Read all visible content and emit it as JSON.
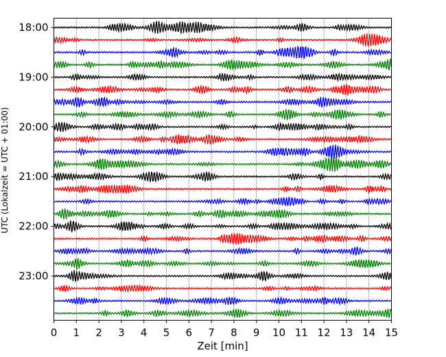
{
  "chart_data": {
    "type": "line",
    "xlabel": "Zeit  [min]",
    "ylabel": "UTC (Lokalzeit = UTC + 01:00)",
    "xlim": [
      0,
      15
    ],
    "x_ticks": [
      "0",
      "1",
      "2",
      "3",
      "4",
      "5",
      "6",
      "7",
      "8",
      "9",
      "10",
      "11",
      "12",
      "13",
      "14",
      "15"
    ],
    "y_ticks": [
      "18:00",
      "19:00",
      "20:00",
      "21:00",
      "22:00",
      "23:00"
    ],
    "grid": "vertical dotted at each minute",
    "trace_interval_min": 15,
    "trace_count": 24,
    "trace_colors": [
      "#000000",
      "#ff0000",
      "#0000ff",
      "#007f00"
    ],
    "first_trace_utc": "18:00",
    "last_trace_utc": "23:45"
  }
}
